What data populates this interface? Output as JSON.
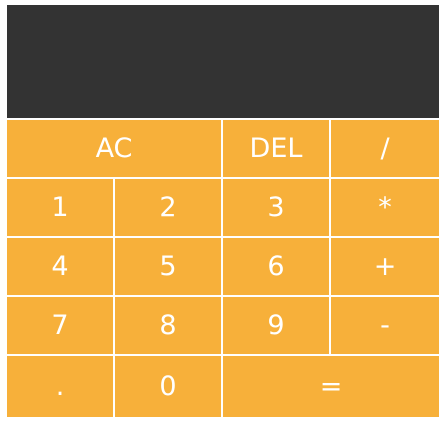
{
  "display": {
    "value": ""
  },
  "buttons": {
    "clear": "AC",
    "delete": "DEL",
    "divide": "/",
    "one": "1",
    "two": "2",
    "three": "3",
    "multiply": "*",
    "four": "4",
    "five": "5",
    "six": "6",
    "add": "+",
    "seven": "7",
    "eight": "8",
    "nine": "9",
    "subtract": "-",
    "decimal": ".",
    "zero": "0",
    "equals": "="
  },
  "colors": {
    "display_background": "#333333",
    "button_background": "#f7b03a",
    "button_text": "#ffffff",
    "separator": "#ffffff"
  }
}
